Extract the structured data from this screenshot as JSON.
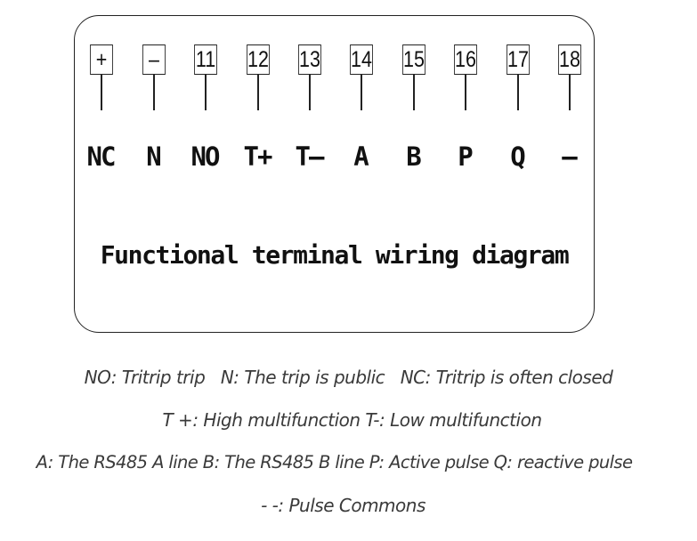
{
  "diagram": {
    "title": "Functional terminal wiring diagram",
    "terminals": [
      {
        "number": "+",
        "label": "NC"
      },
      {
        "number": "–",
        "label": "N"
      },
      {
        "number": "11",
        "label": "NO"
      },
      {
        "number": "12",
        "label": "T+"
      },
      {
        "number": "13",
        "label": "T–"
      },
      {
        "number": "14",
        "label": "A"
      },
      {
        "number": "15",
        "label": "B"
      },
      {
        "number": "16",
        "label": "P"
      },
      {
        "number": "17",
        "label": "Q"
      },
      {
        "number": "18",
        "label": "–"
      }
    ]
  },
  "legend": [
    "NO: Tritrip trip   N: The trip is public   NC: Tritrip is often closed",
    "T +: High multifunction T-: Low multifunction",
    "A: The RS485 A line B: The RS485 B line P: Active pulse Q: reactive pulse",
    "- -: Pulse Commons"
  ]
}
